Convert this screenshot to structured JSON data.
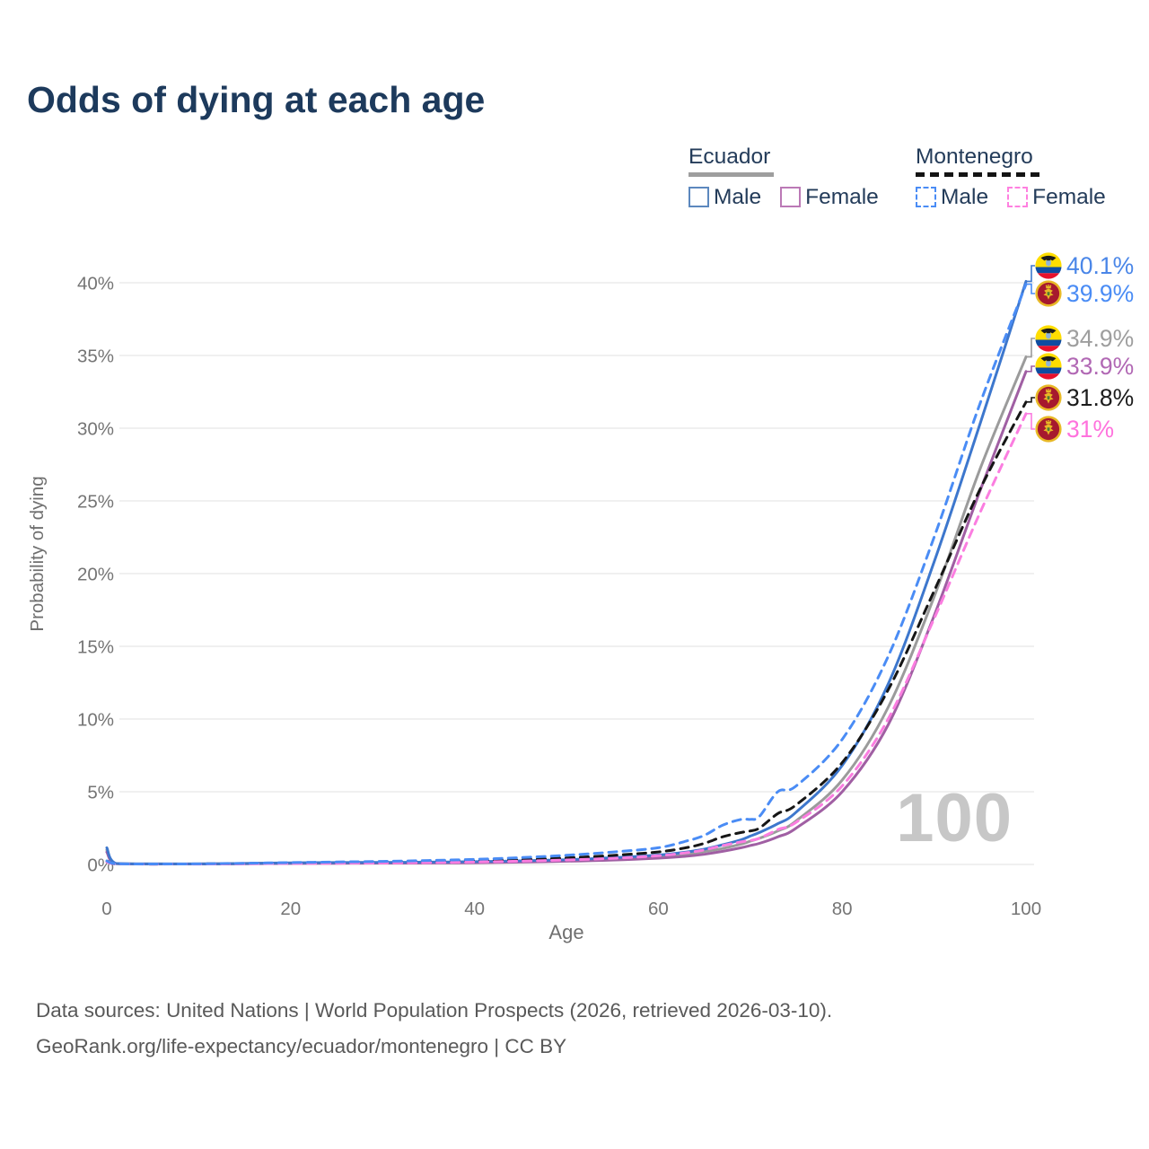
{
  "header": {
    "title": "Odds of dying at each age"
  },
  "legend": {
    "ecuador": {
      "title": "Ecuador",
      "underline_color": "#9e9e9e",
      "male_label": "Male",
      "male_color": "#5c88be",
      "female_label": "Female",
      "female_color": "#bb79b6"
    },
    "montenegro": {
      "title": "Montenegro",
      "underline_color": "#141414",
      "male_label": "Male",
      "male_color": "#4a8cf5",
      "female_label": "Female",
      "female_color": "#ff80e0"
    }
  },
  "chart_data": {
    "type": "line",
    "title": "Odds of dying at each age",
    "xlabel": "Age",
    "ylabel": "Probability of dying",
    "xlim": [
      0,
      100
    ],
    "ylim_pct": [
      0,
      40
    ],
    "x_ticks": [
      0,
      20,
      40,
      60,
      80,
      100
    ],
    "y_ticks": [
      {
        "value": 0,
        "label": "0%"
      },
      {
        "value": 5,
        "label": "5%"
      },
      {
        "value": 10,
        "label": "10%"
      },
      {
        "value": 15,
        "label": "15%"
      },
      {
        "value": 20,
        "label": "20%"
      },
      {
        "value": 25,
        "label": "25%"
      },
      {
        "value": 30,
        "label": "30%"
      },
      {
        "value": 35,
        "label": "35%"
      },
      {
        "value": 40,
        "label": "40%"
      }
    ],
    "grid": "horizontal",
    "legend_position": "top-right",
    "watermark_age": "100",
    "ages": [
      0,
      1,
      5,
      10,
      15,
      20,
      25,
      30,
      35,
      40,
      45,
      50,
      55,
      60,
      63,
      65,
      67,
      69,
      70,
      71,
      73,
      75,
      80,
      85,
      90,
      95,
      100
    ],
    "series": [
      {
        "id": "ecuador-both",
        "name": "Ecuador — Both sexes",
        "country": "ecuador",
        "color": "#9b9b9b",
        "label_color": "#9e9e9e",
        "dash": false,
        "end_label": "34.9%",
        "values_pct": [
          1.0,
          0.06,
          0.035,
          0.035,
          0.06,
          0.09,
          0.1,
          0.11,
          0.13,
          0.15,
          0.2,
          0.27,
          0.38,
          0.54,
          0.7,
          0.88,
          1.1,
          1.4,
          1.6,
          1.8,
          2.3,
          3.0,
          5.8,
          10.8,
          18.4,
          27.2,
          34.9
        ]
      },
      {
        "id": "ecuador-female",
        "name": "Ecuador — Female",
        "country": "ecuador",
        "color": "#a05fa3",
        "label_color": "#b168b4",
        "dash": false,
        "end_label": "33.9%",
        "values_pct": [
          0.85,
          0.055,
          0.03,
          0.03,
          0.05,
          0.07,
          0.08,
          0.09,
          0.1,
          0.12,
          0.16,
          0.22,
          0.3,
          0.43,
          0.56,
          0.7,
          0.9,
          1.15,
          1.3,
          1.45,
          1.9,
          2.5,
          5.0,
          9.6,
          17.1,
          25.7,
          33.9
        ]
      },
      {
        "id": "ecuador-male",
        "name": "Ecuador — Male",
        "country": "ecuador",
        "color": "#3d77cd",
        "label_color": "#4a86e8",
        "dash": false,
        "end_label": "40.1%",
        "values_pct": [
          1.15,
          0.07,
          0.04,
          0.04,
          0.07,
          0.11,
          0.13,
          0.14,
          0.16,
          0.19,
          0.25,
          0.33,
          0.46,
          0.65,
          0.85,
          1.05,
          1.35,
          1.7,
          1.95,
          2.2,
          2.8,
          3.6,
          6.8,
          12.4,
          20.8,
          30.3,
          40.1
        ]
      },
      {
        "id": "montenegro-both",
        "name": "Montenegro — Both sexes",
        "country": "montenegro",
        "color": "#161616",
        "label_color": "#1c1c1c",
        "dash": true,
        "end_label": "31.8%",
        "values_pct": [
          0.2,
          0.04,
          0.025,
          0.03,
          0.06,
          0.1,
          0.12,
          0.15,
          0.19,
          0.25,
          0.33,
          0.45,
          0.62,
          0.86,
          1.15,
          1.45,
          1.9,
          2.2,
          2.3,
          2.5,
          3.5,
          4.1,
          7.0,
          12.0,
          18.8,
          25.8,
          31.8
        ]
      },
      {
        "id": "montenegro-female",
        "name": "Montenegro — Female",
        "country": "montenegro",
        "color": "#fb7de0",
        "label_color": "#ff72dd",
        "dash": true,
        "end_label": "31%",
        "values_pct": [
          0.17,
          0.035,
          0.02,
          0.025,
          0.045,
          0.07,
          0.085,
          0.1,
          0.13,
          0.17,
          0.23,
          0.31,
          0.42,
          0.6,
          0.8,
          1.0,
          1.3,
          1.55,
          1.65,
          1.8,
          2.4,
          2.9,
          5.4,
          10.0,
          16.9,
          24.2,
          31.0
        ]
      },
      {
        "id": "montenegro-male",
        "name": "Montenegro — Male",
        "country": "montenegro",
        "color": "#4a8cf5",
        "label_color": "#4a8cf5",
        "dash": true,
        "end_label": "39.9%",
        "values_pct": [
          0.25,
          0.05,
          0.03,
          0.04,
          0.08,
          0.13,
          0.17,
          0.21,
          0.27,
          0.35,
          0.47,
          0.63,
          0.85,
          1.15,
          1.6,
          2.0,
          2.7,
          3.1,
          3.1,
          3.3,
          5.0,
          5.4,
          8.6,
          14.3,
          22.5,
          31.7,
          39.9
        ]
      }
    ]
  },
  "footer": {
    "line1": "Data sources: United Nations | World Population Prospects (2026, retrieved 2026-03-10).",
    "line2": "GeoRank.org/life-expectancy/ecuador/montenegro | CC BY"
  }
}
